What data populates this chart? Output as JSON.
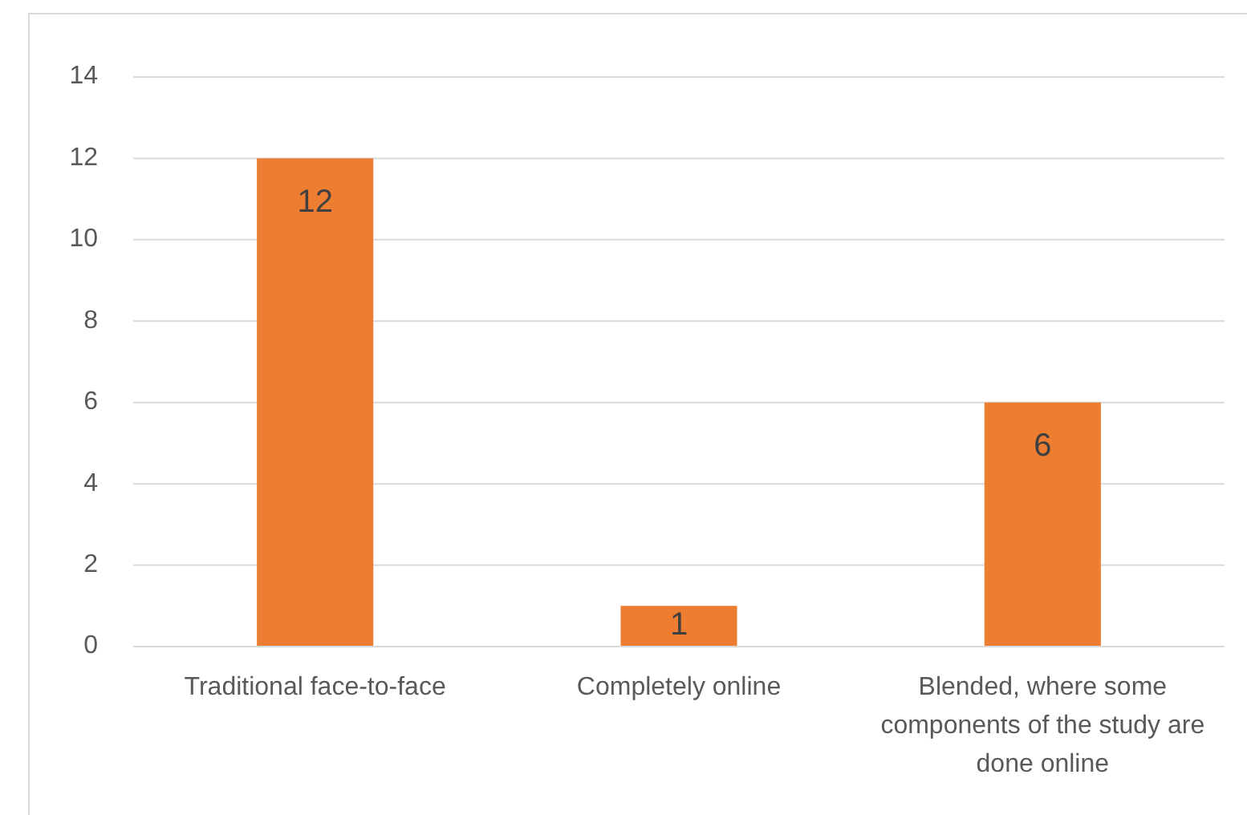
{
  "chart_data": {
    "type": "bar",
    "categories": [
      "Traditional face-to-face",
      "Completely online",
      "Blended, where some components of the study are done online"
    ],
    "values": [
      12,
      1,
      6
    ],
    "color": "#ed7d31",
    "ylim": [
      0,
      14
    ],
    "yticks": [
      0,
      2,
      4,
      6,
      8,
      10,
      12,
      14
    ],
    "grid": "y",
    "data_labels": true
  }
}
